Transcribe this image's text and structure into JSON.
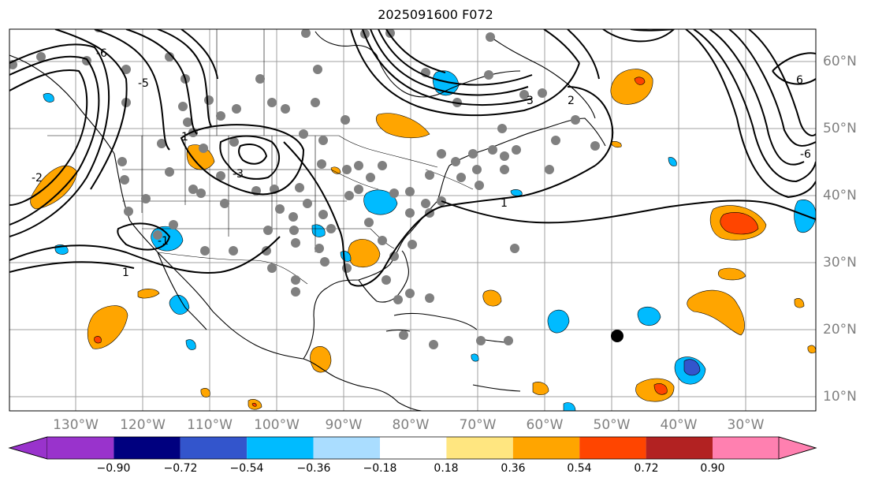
{
  "title": "2025091600 F072",
  "map": {
    "lat_ticks": [
      "60°N",
      "50°N",
      "40°N",
      "30°N",
      "20°N",
      "10°N"
    ],
    "lon_ticks": [
      "130°W",
      "120°W",
      "110°W",
      "100°W",
      "90°W",
      "80°W",
      "70°W",
      "60°W",
      "50°W",
      "40°W",
      "30°W"
    ],
    "contour_labels": [
      "-2",
      "-6",
      "-5",
      "-3",
      "-1",
      "1",
      "1",
      "1",
      "2",
      "3",
      "6",
      "-6"
    ]
  },
  "colorbar": {
    "tick_labels": [
      "−0.90",
      "−0.72",
      "−0.54",
      "−0.36",
      "−0.18",
      "0.18",
      "0.36",
      "0.54",
      "0.72",
      "0.90"
    ],
    "colors": [
      "#9933cc",
      "#00007f",
      "#3355cc",
      "#00bbff",
      "#aaddff",
      "#ffffff",
      "#ffe680",
      "#ffa500",
      "#ff4500",
      "#b22222",
      "#ff80b0"
    ]
  },
  "colors": {
    "grid": "#a0a0a0",
    "tick_text": "#808080",
    "station": "#808080",
    "contour": "#000000"
  }
}
